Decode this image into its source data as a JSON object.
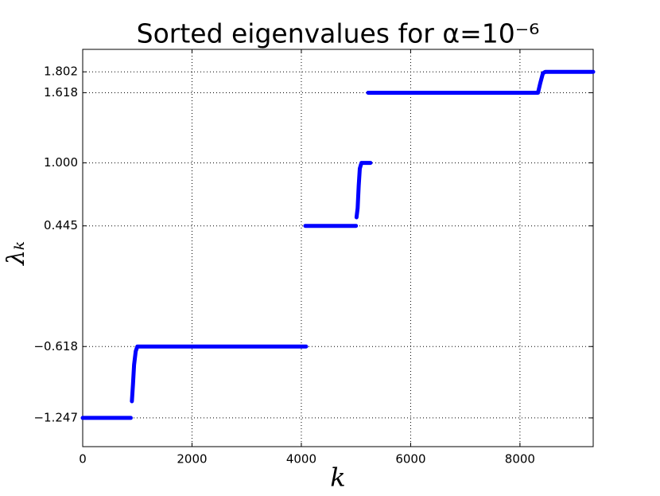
{
  "chart_data": {
    "type": "line",
    "title": "Sorted eigenvalues for α=10⁻⁶",
    "x_label": "k",
    "y_label": "λₖ",
    "x": [
      0,
      880,
      null,
      900,
      920,
      940,
      970,
      1000,
      4087,
      null,
      4073,
      5000,
      null,
      5010,
      5030,
      5050,
      5070,
      5100,
      5265,
      null,
      5222,
      8330,
      8370,
      8420,
      8465,
      9340
    ],
    "series": [
      {
        "color": "#0000ff",
        "values": [
          -1.247,
          -1.247,
          null,
          -1.1,
          -0.95,
          -0.78,
          -0.66,
          -0.618,
          -0.618,
          null,
          0.445,
          0.445,
          null,
          0.52,
          0.6,
          0.8,
          0.95,
          1.0,
          1.0,
          null,
          1.618,
          1.618,
          1.7,
          1.79,
          1.802,
          1.802
        ]
      }
    ],
    "xlim": [
      0,
      9340
    ],
    "ylim": [
      -1.5,
      2.0
    ],
    "xticks": [
      0,
      2000,
      4000,
      6000,
      8000
    ],
    "yticks": [
      {
        "value": -1.247,
        "label": "−1.247"
      },
      {
        "value": -0.618,
        "label": "−0.618"
      },
      0.445,
      {
        "value": 1.0,
        "label": "1.000"
      },
      1.618,
      1.802
    ],
    "grid": true
  }
}
